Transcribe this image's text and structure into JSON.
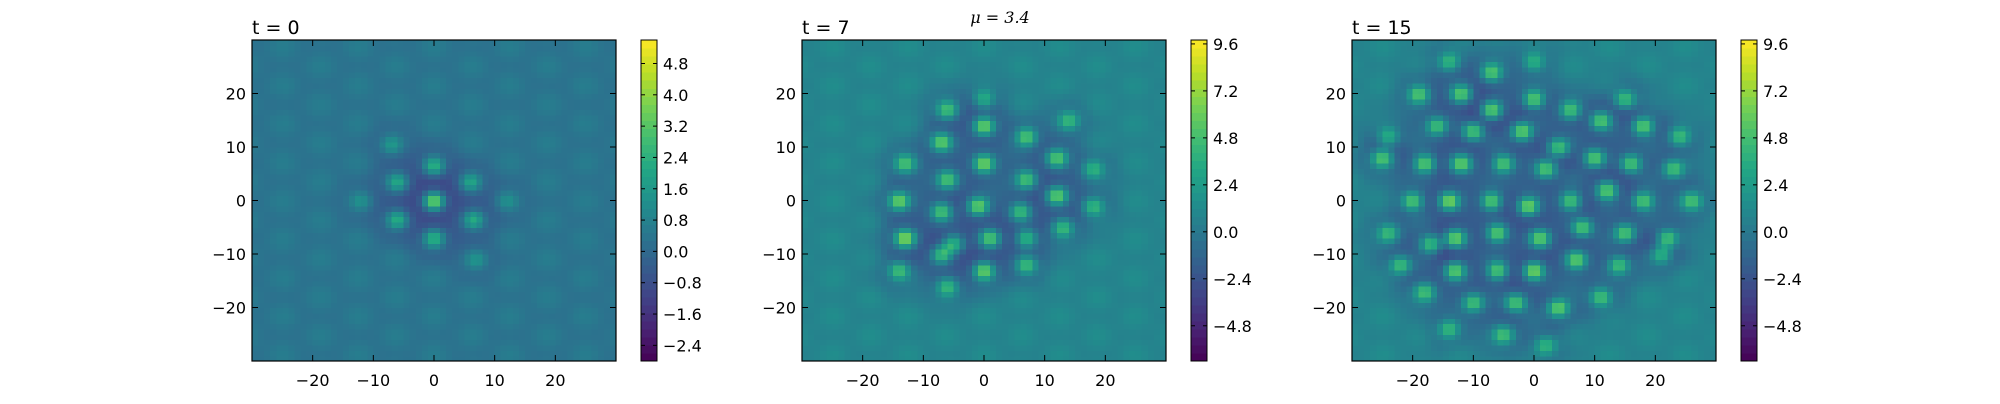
{
  "figure": {
    "suptitle": "μ = 3.4"
  },
  "chart_data": [
    {
      "type": "heatmap",
      "title": "t = 0",
      "xlabel": "",
      "ylabel": "",
      "xlim": [
        -30,
        30
      ],
      "ylim": [
        -30,
        30
      ],
      "x_ticks": [
        -20,
        -10,
        0,
        10,
        20
      ],
      "y_ticks": [
        20,
        10,
        0,
        -10,
        -20
      ],
      "colormap": "viridis",
      "colorbar": {
        "min": -2.8,
        "max": 5.4,
        "ticks": [
          "4.8",
          "4.0",
          "3.2",
          "2.4",
          "1.6",
          "0.8",
          "0.0",
          "−0.8",
          "−1.6",
          "−2.4"
        ]
      },
      "background_level": 0.4,
      "background_ripple": 0.25,
      "hexagonal_spacing": 7.2,
      "peaks": [
        {
          "x": 0,
          "y": 0,
          "value": 5.0
        },
        {
          "x": 0,
          "y": 6.5,
          "value": 3.0
        },
        {
          "x": 0,
          "y": -7,
          "value": 3.0
        },
        {
          "x": -6,
          "y": 3.5,
          "value": 2.6
        },
        {
          "x": 6,
          "y": 3.5,
          "value": 2.4
        },
        {
          "x": -6,
          "y": -3.5,
          "value": 2.8
        },
        {
          "x": 6.5,
          "y": -3.5,
          "value": 2.6
        },
        {
          "x": -7,
          "y": 10.5,
          "value": 1.6
        },
        {
          "x": 7,
          "y": -11,
          "value": 1.4
        },
        {
          "x": -12,
          "y": 0,
          "value": 1.2
        },
        {
          "x": 12,
          "y": 0,
          "value": 1.2
        }
      ]
    },
    {
      "type": "heatmap",
      "title": "t = 7",
      "xlabel": "",
      "ylabel": "",
      "xlim": [
        -30,
        30
      ],
      "ylim": [
        -30,
        30
      ],
      "x_ticks": [
        -20,
        -10,
        0,
        10,
        20
      ],
      "y_ticks": [
        20,
        10,
        0,
        -10,
        -20
      ],
      "colormap": "viridis",
      "colorbar": {
        "min": -6.6,
        "max": 9.8,
        "ticks": [
          "9.6",
          "7.2",
          "4.8",
          "2.4",
          "0.0",
          "−2.4",
          "−4.8"
        ]
      },
      "background_level": 0.9,
      "background_ripple": 0.5,
      "hexagonal_spacing": 7.2,
      "peaks": [
        {
          "x": -6,
          "y": 17,
          "value": 6.5
        },
        {
          "x": 0,
          "y": 19,
          "value": 5.0
        },
        {
          "x": -7,
          "y": 11,
          "value": 8.0
        },
        {
          "x": 0,
          "y": 14,
          "value": 8.5
        },
        {
          "x": 7,
          "y": 12,
          "value": 7.0
        },
        {
          "x": 14,
          "y": 15,
          "value": 5.5
        },
        {
          "x": -13,
          "y": 7,
          "value": 6.5
        },
        {
          "x": -6,
          "y": 4,
          "value": 7.0
        },
        {
          "x": 0,
          "y": 7,
          "value": 8.5
        },
        {
          "x": 7,
          "y": 4,
          "value": 7.0
        },
        {
          "x": 12,
          "y": 8,
          "value": 7.5
        },
        {
          "x": 18,
          "y": 6,
          "value": 5.5
        },
        {
          "x": -14,
          "y": 0,
          "value": 8.5
        },
        {
          "x": -7,
          "y": -2,
          "value": 7.5
        },
        {
          "x": -1,
          "y": -1,
          "value": 8.5
        },
        {
          "x": 6,
          "y": -2,
          "value": 7.0
        },
        {
          "x": 12,
          "y": 1,
          "value": 8.5
        },
        {
          "x": 18,
          "y": -1,
          "value": 6.0
        },
        {
          "x": -13,
          "y": -7,
          "value": 9.5
        },
        {
          "x": -5,
          "y": -8,
          "value": 7.5
        },
        {
          "x": 1,
          "y": -7,
          "value": 8.0
        },
        {
          "x": 7,
          "y": -7,
          "value": 7.0
        },
        {
          "x": 13,
          "y": -5,
          "value": 6.5
        },
        {
          "x": -14,
          "y": -13,
          "value": 6.5
        },
        {
          "x": -7,
          "y": -10,
          "value": 7.5
        },
        {
          "x": 0,
          "y": -13,
          "value": 8.5
        },
        {
          "x": 7,
          "y": -12,
          "value": 6.5
        },
        {
          "x": -6,
          "y": -16,
          "value": 6.0
        }
      ]
    },
    {
      "type": "heatmap",
      "title": "t = 15",
      "xlabel": "",
      "ylabel": "",
      "xlim": [
        -30,
        30
      ],
      "ylim": [
        -30,
        30
      ],
      "x_ticks": [
        -20,
        -10,
        0,
        10,
        20
      ],
      "y_ticks": [
        20,
        10,
        0,
        -10,
        -20
      ],
      "colormap": "viridis",
      "colorbar": {
        "min": -6.6,
        "max": 9.8,
        "ticks": [
          "9.6",
          "7.2",
          "4.8",
          "2.4",
          "0.0",
          "−2.4",
          "−4.8"
        ]
      },
      "background_level": 0.9,
      "background_ripple": 0.5,
      "hexagonal_spacing": 7.2,
      "peaks": [
        {
          "x": -14,
          "y": 26,
          "value": 6.0
        },
        {
          "x": -7,
          "y": 24,
          "value": 7.5
        },
        {
          "x": 0,
          "y": 26,
          "value": 5.0
        },
        {
          "x": -19,
          "y": 20,
          "value": 7.5
        },
        {
          "x": -12,
          "y": 20,
          "value": 8.5
        },
        {
          "x": -7,
          "y": 17,
          "value": 9.0
        },
        {
          "x": 0,
          "y": 19,
          "value": 8.0
        },
        {
          "x": 6,
          "y": 17,
          "value": 7.0
        },
        {
          "x": 15,
          "y": 19,
          "value": 7.0
        },
        {
          "x": -24,
          "y": 12,
          "value": 5.5
        },
        {
          "x": -16,
          "y": 14,
          "value": 7.5
        },
        {
          "x": -10,
          "y": 13,
          "value": 8.5
        },
        {
          "x": -2,
          "y": 13,
          "value": 9.0
        },
        {
          "x": 4,
          "y": 10,
          "value": 8.0
        },
        {
          "x": 11,
          "y": 15,
          "value": 8.0
        },
        {
          "x": 18,
          "y": 14,
          "value": 8.5
        },
        {
          "x": 24,
          "y": 12,
          "value": 6.5
        },
        {
          "x": -25,
          "y": 8,
          "value": 7.5
        },
        {
          "x": -18,
          "y": 7,
          "value": 8.5
        },
        {
          "x": -12,
          "y": 7,
          "value": 8.5
        },
        {
          "x": -5,
          "y": 7,
          "value": 8.0
        },
        {
          "x": 2,
          "y": 6,
          "value": 8.5
        },
        {
          "x": 10,
          "y": 8,
          "value": 8.5
        },
        {
          "x": 16,
          "y": 7,
          "value": 8.0
        },
        {
          "x": 23,
          "y": 6,
          "value": 7.0
        },
        {
          "x": -20,
          "y": 0,
          "value": 8.0
        },
        {
          "x": -14,
          "y": 0,
          "value": 9.5
        },
        {
          "x": -7,
          "y": 0,
          "value": 8.5
        },
        {
          "x": -1,
          "y": -1,
          "value": 9.0
        },
        {
          "x": 6,
          "y": 0,
          "value": 8.0
        },
        {
          "x": 12,
          "y": 2,
          "value": 8.5
        },
        {
          "x": 18,
          "y": 0,
          "value": 8.0
        },
        {
          "x": 26,
          "y": 0,
          "value": 6.5
        },
        {
          "x": -24,
          "y": -6,
          "value": 6.0
        },
        {
          "x": -17,
          "y": -8,
          "value": 8.0
        },
        {
          "x": -13,
          "y": -7,
          "value": 9.5
        },
        {
          "x": -6,
          "y": -6,
          "value": 8.5
        },
        {
          "x": 1,
          "y": -7,
          "value": 8.5
        },
        {
          "x": 8,
          "y": -5,
          "value": 8.0
        },
        {
          "x": 15,
          "y": -6,
          "value": 8.0
        },
        {
          "x": 22,
          "y": -7,
          "value": 8.0
        },
        {
          "x": -22,
          "y": -12,
          "value": 7.0
        },
        {
          "x": -13,
          "y": -13,
          "value": 8.5
        },
        {
          "x": -6,
          "y": -13,
          "value": 8.0
        },
        {
          "x": 0,
          "y": -13,
          "value": 9.5
        },
        {
          "x": 7,
          "y": -11,
          "value": 8.0
        },
        {
          "x": 14,
          "y": -12,
          "value": 7.0
        },
        {
          "x": 21,
          "y": -10,
          "value": 6.5
        },
        {
          "x": -18,
          "y": -17,
          "value": 6.5
        },
        {
          "x": -10,
          "y": -19,
          "value": 7.5
        },
        {
          "x": -3,
          "y": -19,
          "value": 8.0
        },
        {
          "x": 4,
          "y": -20,
          "value": 8.5
        },
        {
          "x": 11,
          "y": -18,
          "value": 7.0
        },
        {
          "x": -14,
          "y": -24,
          "value": 6.0
        },
        {
          "x": -5,
          "y": -25,
          "value": 6.5
        },
        {
          "x": 2,
          "y": -27,
          "value": 5.5
        }
      ]
    }
  ]
}
